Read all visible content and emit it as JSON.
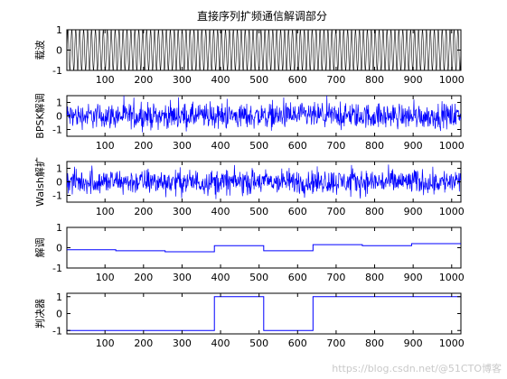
{
  "chart_data": {
    "title": "直接序列扩频通信解调部分",
    "type": "line",
    "series_color": "#0000ff",
    "x_ticks": [
      100,
      200,
      300,
      400,
      500,
      600,
      700,
      800,
      900,
      1000
    ],
    "xlim": [
      1,
      1024
    ],
    "panels": [
      {
        "ylabel": "载波",
        "kind": "carrier",
        "ylim": [
          -1,
          1
        ],
        "y_ticks": [
          -1,
          0,
          1
        ],
        "series_color": "#000000",
        "cycles": 100
      },
      {
        "ylabel": "BPSK解调",
        "kind": "noise",
        "ylim": [
          -1.5,
          1.5
        ],
        "y_ticks": [
          -1,
          0,
          1
        ],
        "series_color": "#0000ff",
        "x": [
          1,
          128,
          256,
          384,
          512,
          640,
          768,
          896,
          1024
        ],
        "y": [
          0,
          0,
          0,
          0,
          0,
          0,
          0,
          0,
          0
        ],
        "noise_amplitude": 0.45
      },
      {
        "ylabel": "Walsh解扩",
        "kind": "noise",
        "ylim": [
          -1.5,
          1.5
        ],
        "y_ticks": [
          -1,
          0,
          1
        ],
        "series_color": "#0000ff",
        "x": [
          1,
          128,
          256,
          384,
          512,
          640,
          768,
          896,
          1024
        ],
        "y": [
          0,
          0,
          0,
          0,
          0,
          0,
          0,
          0,
          0
        ],
        "noise_amplitude": 0.45
      },
      {
        "ylabel": "解调",
        "kind": "step",
        "ylim": [
          -1,
          1
        ],
        "y_ticks": [
          -1,
          0,
          1
        ],
        "series_color": "#0000ff",
        "x": [
          1,
          128,
          256,
          384,
          512,
          640,
          768,
          896,
          1024
        ],
        "y": [
          -0.1,
          -0.15,
          -0.2,
          0.1,
          -0.15,
          0.15,
          0.1,
          0.2,
          0.2
        ]
      },
      {
        "ylabel": "判决器",
        "kind": "step",
        "ylim": [
          -1.2,
          1.2
        ],
        "y_ticks": [
          -1,
          0,
          1
        ],
        "series_color": "#0000ff",
        "x": [
          1,
          128,
          256,
          384,
          512,
          640,
          768,
          896,
          1024
        ],
        "y": [
          -1,
          -1,
          -1,
          1,
          -1,
          1,
          1,
          1,
          1
        ]
      }
    ]
  },
  "watermark": "https://blog.csdn.net/@51CTO博客"
}
